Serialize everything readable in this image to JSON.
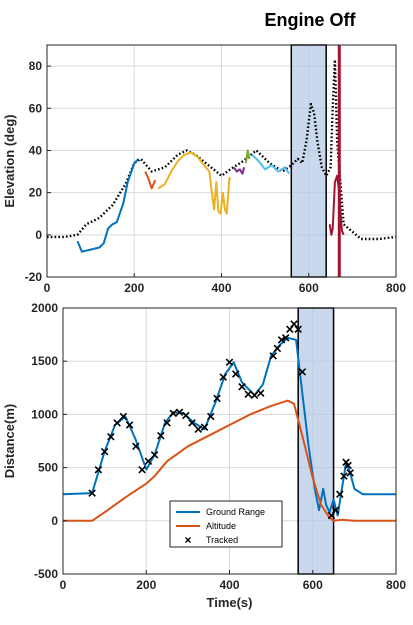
{
  "annotation": "Engine Off",
  "chart_data": [
    {
      "type": "line",
      "ylabel": "Elevation (deg)",
      "xlabel": "",
      "xlim": [
        0,
        800
      ],
      "ylim": [
        -20,
        90
      ],
      "xticks": [
        0,
        200,
        400,
        600,
        800
      ],
      "yticks": [
        -20,
        0,
        20,
        40,
        60,
        80
      ],
      "xtick_labels": [
        "0",
        "200",
        "400",
        "600",
        "800"
      ],
      "ytick_labels": [
        "-20",
        "0",
        "20",
        "40",
        "60",
        "80"
      ],
      "grid": true,
      "shaded_region": [
        560,
        640
      ],
      "vertical_line": 670,
      "series": [
        {
          "style": "dotted",
          "color": "#000000",
          "x": [
            0,
            40,
            70,
            90,
            120,
            150,
            180,
            200,
            215,
            240,
            270,
            300,
            320,
            340,
            370,
            400,
            420,
            450,
            480,
            510,
            540,
            560,
            575,
            585,
            595,
            605,
            612,
            620,
            630,
            640,
            650,
            655,
            660,
            665,
            680,
            720,
            760,
            800
          ],
          "y": [
            -1,
            -1,
            0,
            5,
            8,
            14,
            24,
            34,
            36,
            30,
            32,
            38,
            40,
            38,
            33,
            28,
            31,
            35,
            40,
            34,
            30,
            33,
            36,
            34,
            45,
            62,
            58,
            44,
            32,
            28,
            32,
            60,
            83,
            45,
            5,
            -2,
            -2,
            -1
          ]
        },
        {
          "style": "solid",
          "color": "#0072BD",
          "x": [
            70,
            80,
            100,
            120,
            130,
            140,
            150,
            160,
            175,
            185,
            200,
            210
          ],
          "y": [
            -3,
            -8,
            -7,
            -6,
            -4,
            3,
            5,
            6,
            15,
            25,
            34,
            36
          ]
        },
        {
          "style": "solid",
          "color": "#D95319",
          "x": [
            225,
            232,
            240,
            248
          ],
          "y": [
            30,
            27,
            22,
            26
          ]
        },
        {
          "style": "solid",
          "color": "#EDB120",
          "x": [
            255,
            270,
            285,
            300,
            315,
            330,
            345,
            360,
            372,
            378,
            383,
            388,
            393,
            398,
            403,
            408,
            412,
            418,
            420
          ],
          "y": [
            22,
            24,
            30,
            35,
            38,
            39,
            37,
            33,
            30,
            20,
            12,
            25,
            11,
            10,
            20,
            12,
            10,
            27,
            26
          ]
        },
        {
          "style": "solid",
          "color": "#7E2F8E",
          "x": [
            428,
            435,
            442,
            448,
            452
          ],
          "y": [
            32,
            30,
            31,
            29,
            32
          ]
        },
        {
          "style": "solid",
          "color": "#77AC30",
          "x": [
            456,
            460,
            464
          ],
          "y": [
            34,
            40,
            36
          ]
        },
        {
          "style": "solid",
          "color": "#4DBEEE",
          "x": [
            470,
            485,
            500,
            515,
            530,
            545,
            555
          ],
          "y": [
            38,
            35,
            31,
            33,
            30,
            32,
            29
          ]
        },
        {
          "style": "solid",
          "color": "#A2142F",
          "x": [
            648,
            652,
            655,
            660,
            665,
            670,
            673,
            676,
            680
          ],
          "y": [
            5,
            0,
            3,
            25,
            28,
            20,
            10,
            2,
            0
          ]
        }
      ]
    },
    {
      "type": "line",
      "xlabel": "Time(s)",
      "ylabel": "Distance(m)",
      "xlim": [
        0,
        800
      ],
      "ylim": [
        -500,
        2000
      ],
      "xticks": [
        0,
        200,
        400,
        600,
        800
      ],
      "yticks": [
        -500,
        0,
        500,
        1000,
        1500,
        2000
      ],
      "xtick_labels": [
        "0",
        "200",
        "400",
        "600",
        "800"
      ],
      "ytick_labels": [
        "-500",
        "0",
        "500",
        "1000",
        "1500",
        "2000"
      ],
      "grid": true,
      "shaded_region": [
        565,
        650
      ],
      "legend_position": "bottom-center",
      "series": [
        {
          "name": "Ground Range",
          "style": "solid",
          "color": "#0072BD",
          "x": [
            0,
            70,
            100,
            125,
            150,
            175,
            200,
            220,
            245,
            265,
            290,
            315,
            340,
            365,
            390,
            410,
            430,
            460,
            480,
            500,
            520,
            540,
            560,
            575,
            590,
            605,
            615,
            625,
            632,
            640,
            650,
            660,
            670,
            680,
            690,
            700,
            720,
            760,
            800
          ],
          "y": [
            250,
            260,
            650,
            900,
            980,
            760,
            480,
            620,
            920,
            1020,
            1010,
            920,
            860,
            1100,
            1380,
            1490,
            1300,
            1180,
            1280,
            1550,
            1650,
            1720,
            1700,
            1200,
            700,
            300,
            100,
            300,
            150,
            80,
            200,
            50,
            300,
            550,
            450,
            300,
            250,
            250,
            250
          ]
        },
        {
          "name": "Altitude",
          "style": "solid",
          "color": "#D95319",
          "x": [
            0,
            70,
            100,
            150,
            200,
            220,
            250,
            300,
            350,
            400,
            450,
            500,
            540,
            555,
            575,
            600,
            620,
            640,
            650,
            670,
            700,
            750,
            800
          ],
          "y": [
            0,
            0,
            80,
            220,
            350,
            420,
            560,
            700,
            800,
            900,
            1000,
            1080,
            1130,
            1100,
            800,
            400,
            150,
            30,
            0,
            10,
            0,
            0,
            0
          ]
        },
        {
          "name": "Tracked",
          "style": "markers",
          "marker": "x",
          "color": "#000000",
          "x": [
            70,
            85,
            100,
            115,
            130,
            145,
            160,
            175,
            190,
            205,
            220,
            235,
            250,
            265,
            280,
            295,
            310,
            325,
            340,
            355,
            370,
            385,
            400,
            415,
            430,
            445,
            460,
            475,
            505,
            515,
            525,
            535,
            545,
            555,
            565,
            575,
            645,
            655,
            665,
            675,
            680,
            685,
            690
          ],
          "y": [
            260,
            480,
            650,
            790,
            920,
            980,
            900,
            700,
            480,
            560,
            620,
            800,
            920,
            1010,
            1020,
            990,
            920,
            860,
            880,
            980,
            1150,
            1350,
            1490,
            1380,
            1260,
            1190,
            1180,
            1200,
            1550,
            1620,
            1700,
            1720,
            1800,
            1850,
            1800,
            1400,
            50,
            100,
            250,
            420,
            550,
            520,
            450
          ]
        }
      ]
    }
  ]
}
